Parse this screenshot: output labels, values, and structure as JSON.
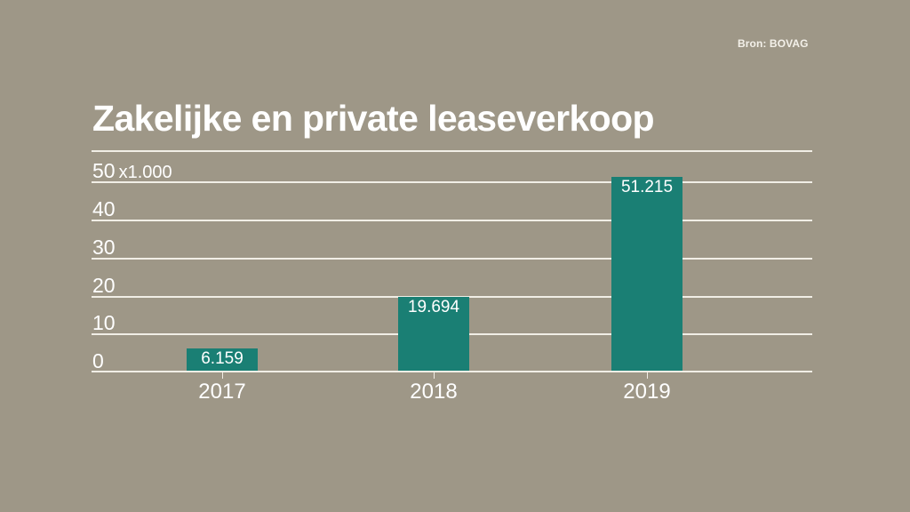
{
  "source": "Bron: BOVAG",
  "title": "Zakelijke en private leaseverkoop",
  "colors": {
    "background": "#9e9787",
    "bar": "#1a7f74",
    "gridline": "#f1eee6",
    "text": "#ffffff"
  },
  "y_axis": {
    "ticks": [
      "0",
      "10",
      "20",
      "30",
      "40",
      "50"
    ],
    "unit": "x1.000"
  },
  "bars": [
    {
      "year": "2017",
      "label": "6.159"
    },
    {
      "year": "2018",
      "label": "19.694"
    },
    {
      "year": "2019",
      "label": "51.215"
    }
  ],
  "chart_data": {
    "type": "bar",
    "title": "Zakelijke en private leaseverkoop",
    "source": "Bron: BOVAG",
    "categories": [
      "2017",
      "2018",
      "2019"
    ],
    "values": [
      6159,
      19694,
      51215
    ],
    "value_labels": [
      "6.159",
      "19.694",
      "51.215"
    ],
    "xlabel": "",
    "ylabel": "x1.000",
    "yticks": [
      0,
      10,
      20,
      30,
      40,
      50
    ],
    "ylim": [
      0,
      50
    ],
    "grid": true,
    "legend": null
  }
}
